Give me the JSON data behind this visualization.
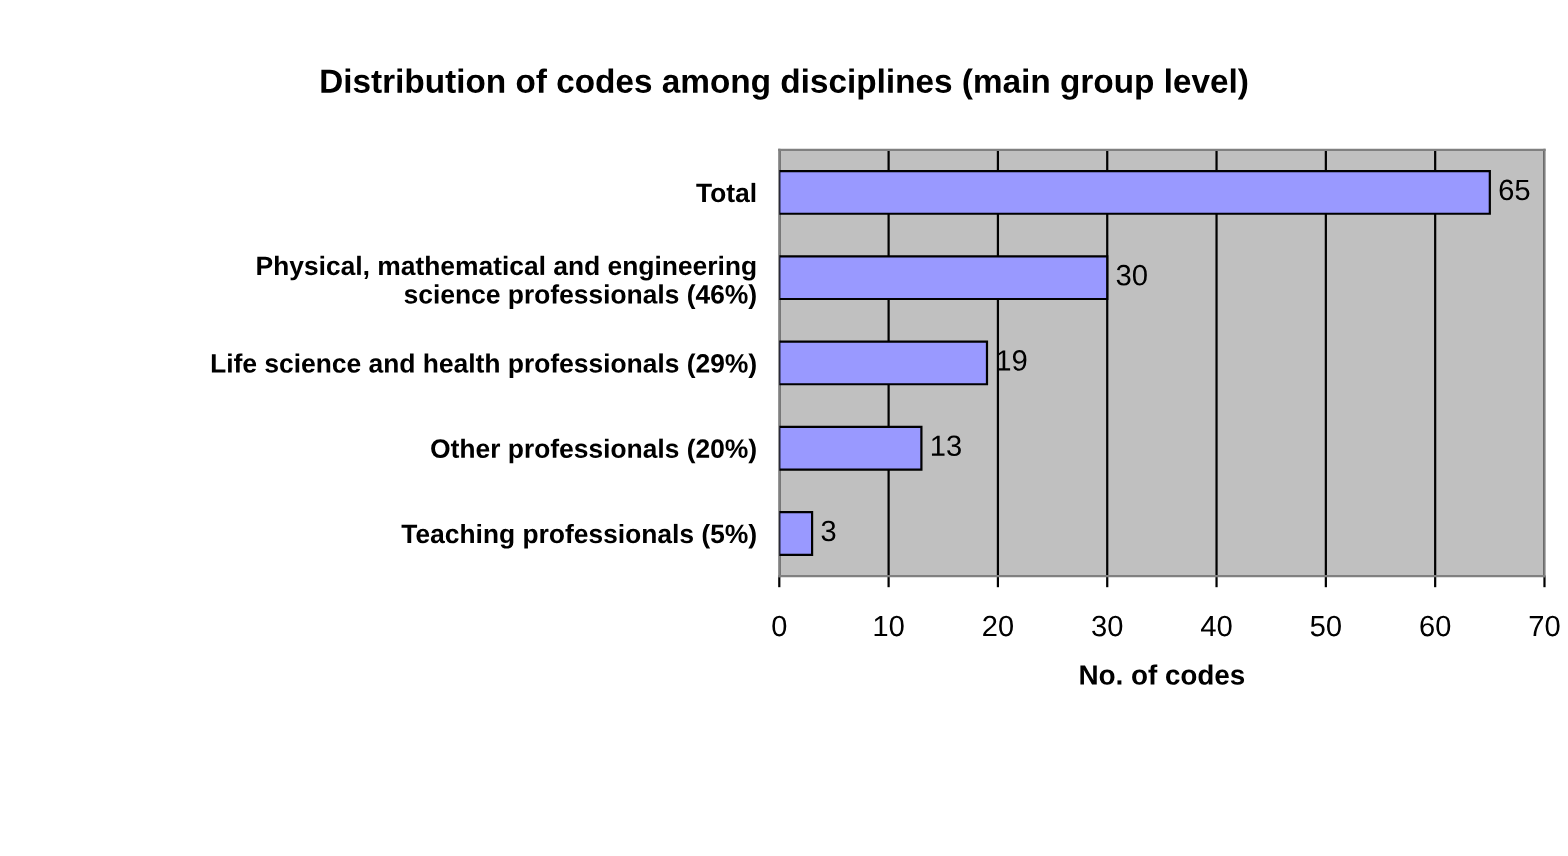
{
  "chart_data": {
    "type": "bar",
    "orientation": "horizontal",
    "title": "Distribution of codes among disciplines (main group level)",
    "xlabel": "No. of codes",
    "categories": [
      "Total",
      "Physical, mathematical and engineering\nscience professionals (46%)",
      "Life science and health professionals (29%)",
      "Other professionals (20%)",
      "Teaching professionals (5%)"
    ],
    "values": [
      65,
      30,
      19,
      13,
      3
    ],
    "color": "#9999ff",
    "xlim": [
      0,
      70
    ],
    "xticks": [
      0,
      10,
      20,
      30,
      40,
      50,
      60,
      70
    ],
    "grid": "x",
    "data_labels": true
  }
}
